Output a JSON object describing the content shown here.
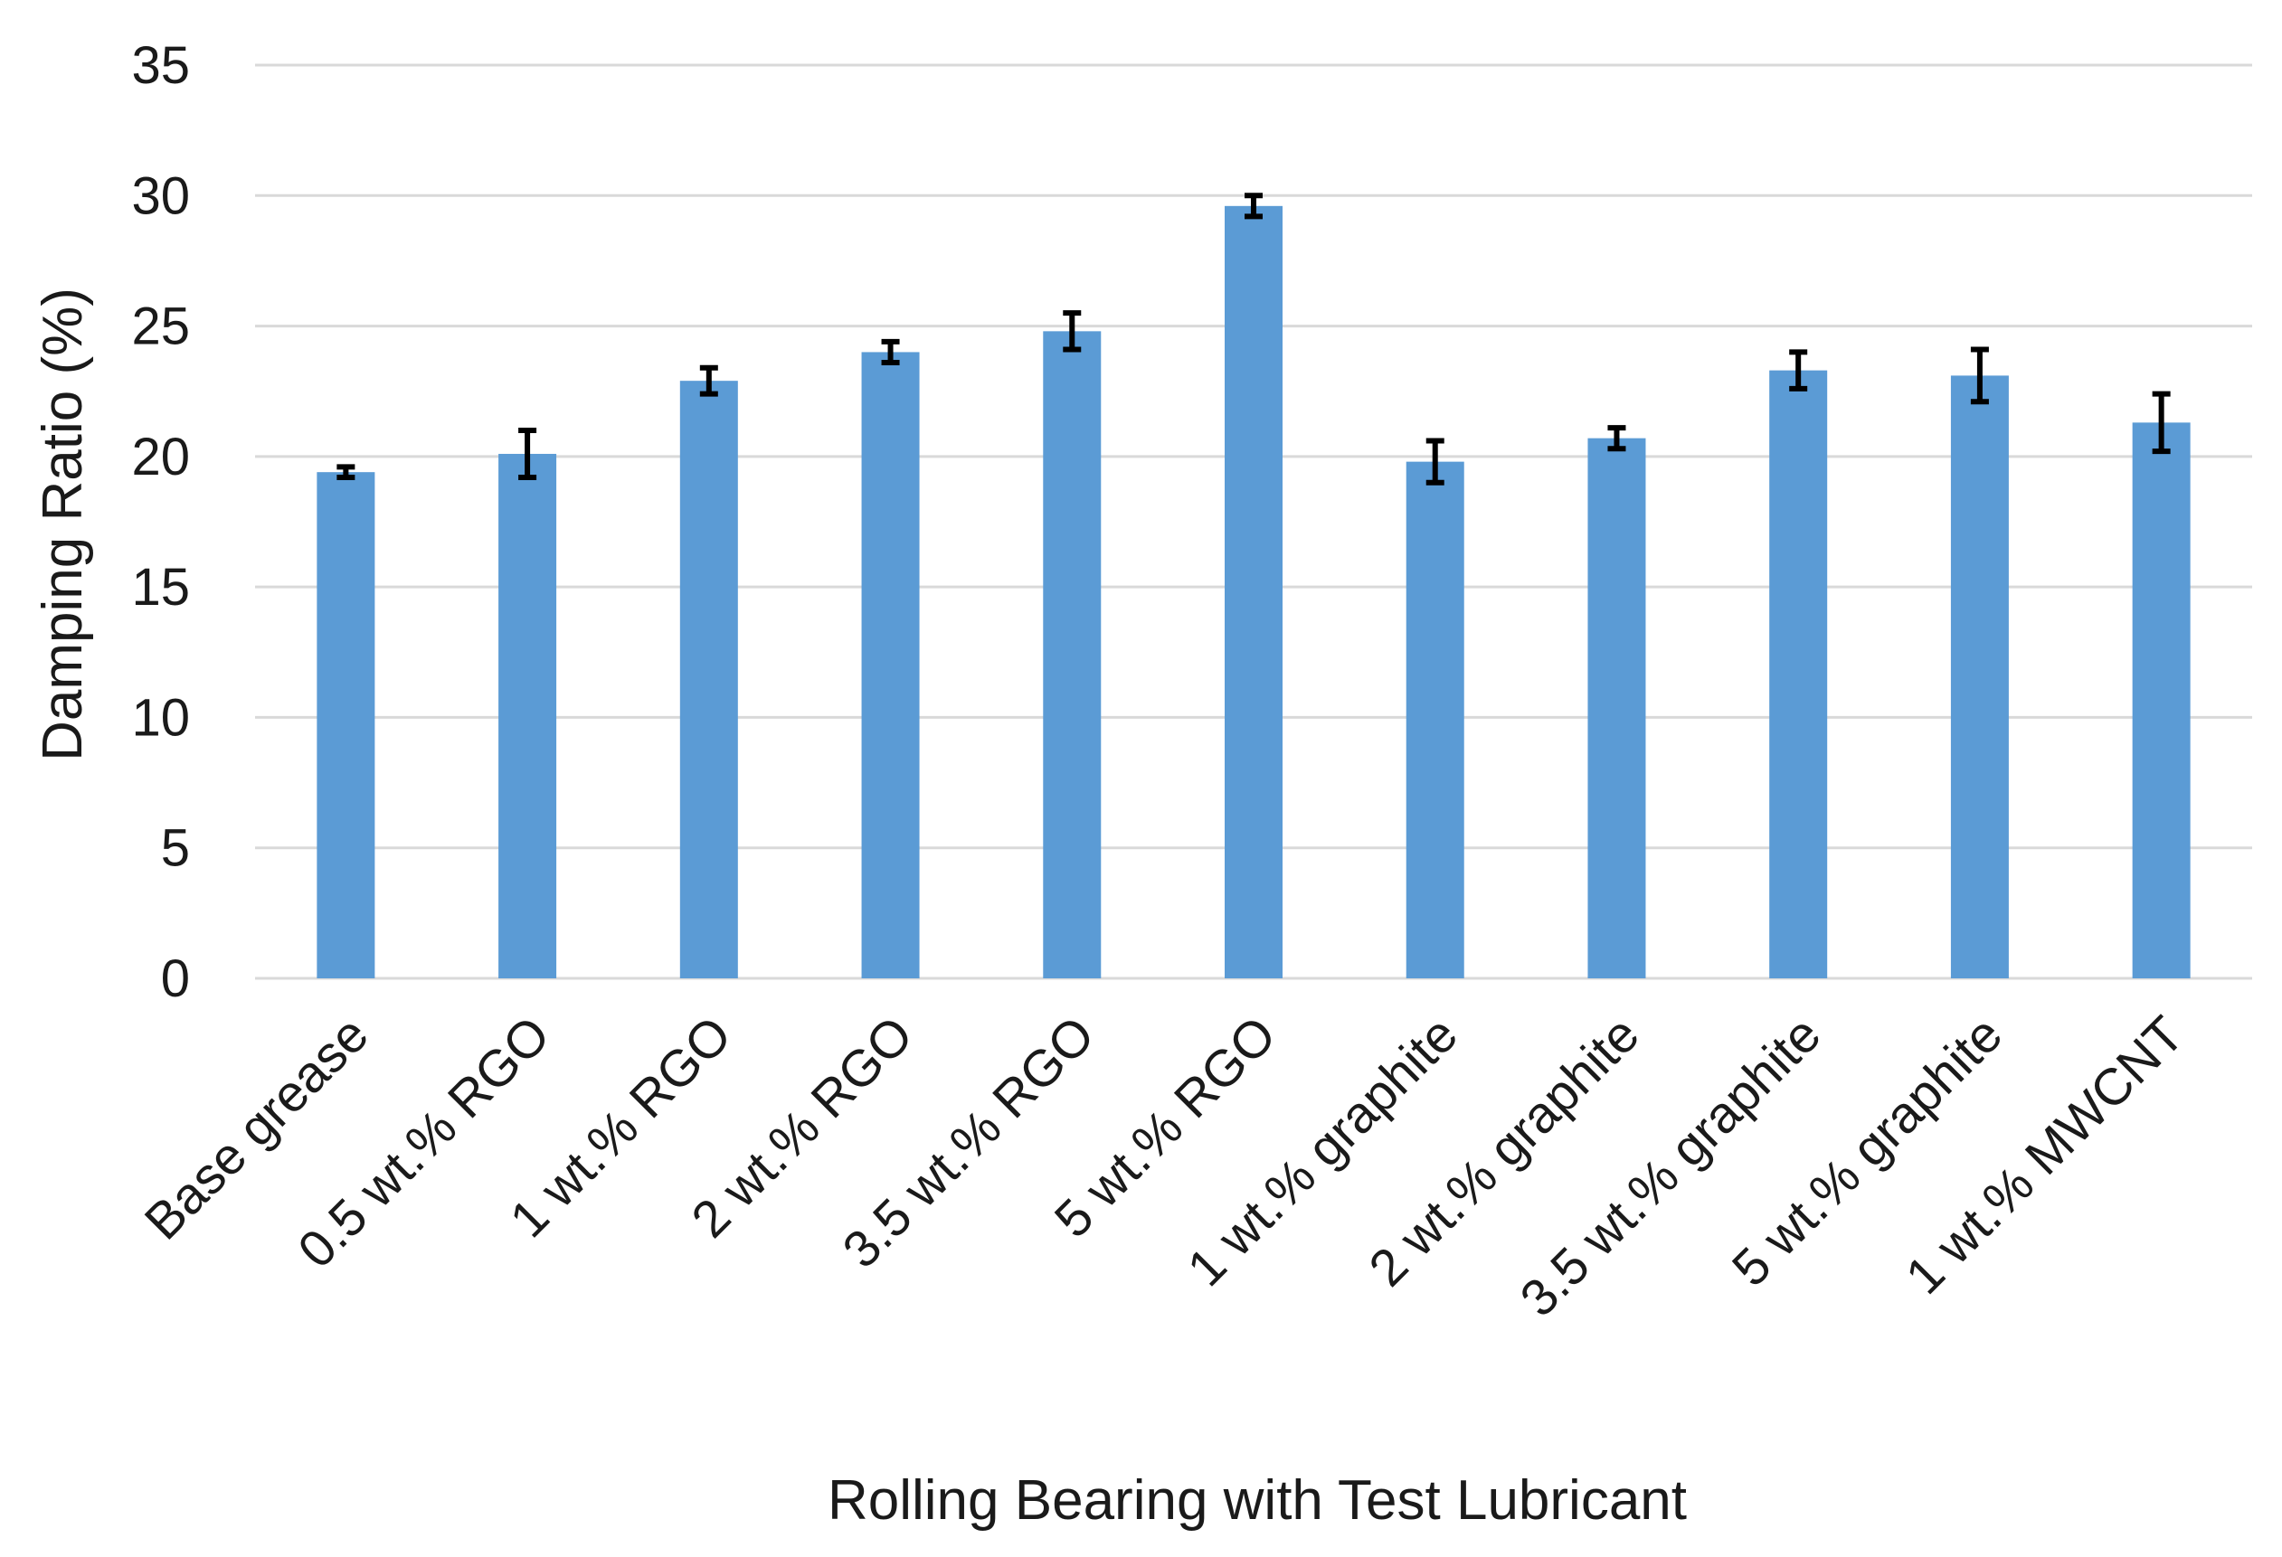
{
  "chart_data": {
    "type": "bar",
    "categories": [
      "Base grease",
      "0.5 wt.% RGO",
      "1 wt.% RGO",
      "2 wt.% RGO",
      "3.5 wt.% RGO",
      "5 wt.% RGO",
      "1 wt.% graphite",
      "2 wt.% graphite",
      "3.5 wt.% graphite",
      "5 wt.% graphite",
      "1 wt.% MWCNT"
    ],
    "values": [
      19.4,
      20.1,
      22.9,
      24.0,
      24.8,
      29.6,
      19.8,
      20.7,
      23.3,
      23.1,
      21.3
    ],
    "error": [
      0.2,
      0.9,
      0.5,
      0.4,
      0.7,
      0.4,
      0.8,
      0.4,
      0.7,
      1.0,
      1.1
    ],
    "xlabel": "Rolling Bearing with Test Lubricant",
    "ylabel": "Damping Ratio (%)",
    "ylim": [
      0,
      35
    ],
    "yticks": [
      0,
      5,
      10,
      15,
      20,
      25,
      30,
      35
    ],
    "grid": true,
    "legend": "none",
    "bar_color": "#5b9bd5",
    "error_bar_color": "#000000",
    "grid_color": "#d9d9d9"
  }
}
